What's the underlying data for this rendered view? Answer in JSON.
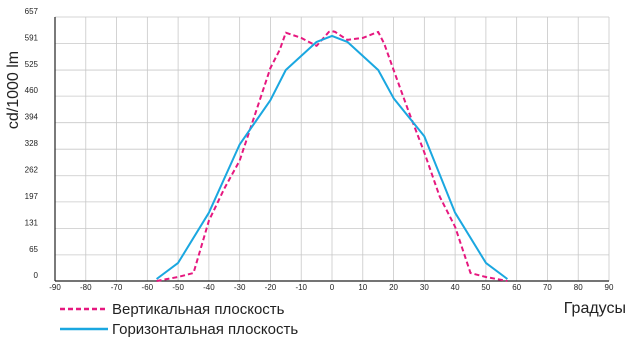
{
  "chart_data": {
    "type": "line",
    "ylabel": "cd/1000 lm",
    "xlabel": "Градусы",
    "xlim": [
      -90,
      90
    ],
    "ylim": [
      0,
      657
    ],
    "x_ticks": [
      -90,
      -80,
      -70,
      -60,
      -50,
      -40,
      -30,
      -20,
      -10,
      0,
      10,
      20,
      30,
      40,
      50,
      60,
      70,
      80,
      90
    ],
    "y_ticks": [
      0,
      65,
      131,
      197,
      262,
      328,
      394,
      460,
      525,
      591,
      657
    ],
    "grid": true,
    "legend_position": "bottom-left",
    "series": [
      {
        "name": "Вертикальная плоскость",
        "color": "#e6187f",
        "dashed": true,
        "x": [
          -57,
          -50,
          -45,
          -40,
          -35,
          -30,
          -25,
          -20,
          -17,
          -15,
          -10,
          -5,
          -1,
          0,
          1,
          5,
          10,
          15,
          17,
          20,
          25,
          30,
          35,
          40,
          45,
          50,
          57
        ],
        "y": [
          0,
          10,
          20,
          150,
          230,
          300,
          415,
          530,
          575,
          618,
          605,
          585,
          620,
          622,
          620,
          600,
          605,
          620,
          590,
          525,
          420,
          320,
          210,
          135,
          20,
          10,
          0
        ]
      },
      {
        "name": "Горизонтальная плоскость",
        "color": "#1aa7e0",
        "dashed": false,
        "x": [
          -57,
          -50,
          -40,
          -30,
          -20,
          -15,
          -5,
          0,
          5,
          15,
          20,
          30,
          40,
          50,
          57
        ],
        "y": [
          5,
          45,
          170,
          340,
          450,
          525,
          595,
          610,
          595,
          525,
          455,
          360,
          170,
          45,
          5
        ]
      }
    ]
  }
}
